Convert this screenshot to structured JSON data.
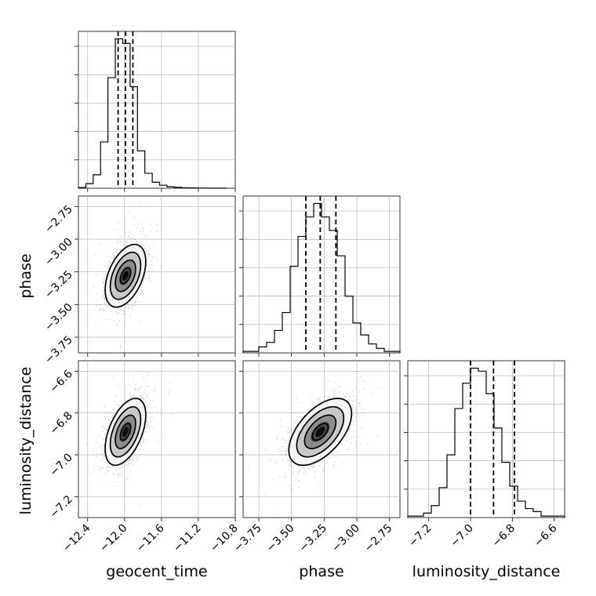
{
  "figure": {
    "params": [
      "geocent_time",
      "phase",
      "luminosity_distance"
    ],
    "axis_labels": [
      "geocent_time",
      "phase",
      "luminosity_distance"
    ]
  },
  "chart_data": [
    {
      "type": "histogram",
      "param": "geocent_time",
      "xlim": [
        -12.5,
        -10.8
      ],
      "xticks": [
        -12.4,
        -12.0,
        -11.6,
        -11.2,
        -10.8
      ],
      "xtick_labels": [
        "−12.4",
        "−12.0",
        "−11.6",
        "−11.2",
        "−10.8"
      ],
      "bins": [
        -12.5,
        -12.42,
        -12.34,
        -12.26,
        -12.18,
        -12.1,
        -12.02,
        -11.94,
        -11.86,
        -11.78,
        -11.7,
        -11.62,
        -11.54,
        -11.46,
        -11.38,
        -11.3,
        -11.22,
        -11.14,
        -11.06,
        -10.98,
        -10.9
      ],
      "counts": [
        0.5,
        3,
        9,
        31,
        74,
        100,
        97,
        68,
        25,
        10,
        4,
        2,
        1,
        0.6,
        0.3,
        0.2,
        0.1,
        0.05,
        0.05,
        0.05
      ],
      "quantiles": [
        -12.07,
        -11.99,
        -11.91
      ],
      "grid": true
    },
    {
      "type": "histogram",
      "param": "phase",
      "xlim": [
        -3.87,
        -2.67
      ],
      "xticks": [
        -3.75,
        -3.5,
        -3.25,
        -3.0,
        -2.75
      ],
      "xtick_labels": [
        "−3.75",
        "−3.50",
        "−3.25",
        "−3.00",
        "−2.75"
      ],
      "bins": [
        -3.87,
        -3.81,
        -3.75,
        -3.69,
        -3.63,
        -3.57,
        -3.51,
        -3.45,
        -3.39,
        -3.33,
        -3.27,
        -3.21,
        -3.15,
        -3.09,
        -3.03,
        -2.97,
        -2.91,
        -2.85,
        -2.79,
        -2.73,
        -2.67
      ],
      "counts": [
        1,
        1,
        4,
        7,
        15,
        27,
        58,
        78,
        91,
        100,
        91,
        82,
        65,
        38,
        20,
        12,
        6,
        3,
        1,
        1
      ],
      "quantiles": [
        -3.39,
        -3.28,
        -3.16
      ],
      "grid": true
    },
    {
      "type": "histogram",
      "param": "luminosity_distance",
      "xlim": [
        -7.3,
        -6.55
      ],
      "xticks": [
        -7.2,
        -7.0,
        -6.8,
        -6.6
      ],
      "xtick_labels": [
        "−7.2",
        "−7.0",
        "−6.8",
        "−6.6"
      ],
      "bins": [
        -7.3,
        -7.2625,
        -7.225,
        -7.1875,
        -7.15,
        -7.1125,
        -7.075,
        -7.0375,
        -7.0,
        -6.9625,
        -6.925,
        -6.8875,
        -6.85,
        -6.8125,
        -6.775,
        -6.7375,
        -6.7,
        -6.6625,
        -6.625,
        -6.5875,
        -6.55
      ],
      "counts": [
        1,
        1,
        3,
        8,
        20,
        42,
        73,
        90,
        100,
        98,
        83,
        60,
        37,
        21,
        11,
        6,
        4,
        1,
        1,
        1
      ],
      "quantiles": [
        -7.0,
        -6.89,
        -6.79
      ],
      "grid": true
    },
    {
      "type": "scatter_density",
      "x_param": "geocent_time",
      "y_param": "phase",
      "xlim": [
        -12.5,
        -10.8
      ],
      "ylim": [
        -3.87,
        -2.67
      ],
      "yticks": [
        -3.75,
        -3.5,
        -3.25,
        -3.0,
        -2.75
      ],
      "ytick_labels": [
        "−3.75",
        "−3.50",
        "−3.25",
        "−3.00",
        "−2.75"
      ],
      "center": [
        -11.99,
        -3.28
      ],
      "std": [
        0.11,
        0.12
      ],
      "correlation": 0.45,
      "contour_levels_sigma": [
        0.5,
        1.0,
        1.5,
        2.0
      ],
      "grid": true
    },
    {
      "type": "scatter_density",
      "x_param": "geocent_time",
      "y_param": "luminosity_distance",
      "xlim": [
        -12.5,
        -10.8
      ],
      "ylim": [
        -7.3,
        -6.55
      ],
      "yticks": [
        -7.2,
        -7.0,
        -6.8,
        -6.6
      ],
      "ytick_labels": [
        "−7.2",
        "−7.0",
        "−6.8",
        "−6.6"
      ],
      "center": [
        -11.99,
        -6.89
      ],
      "std": [
        0.11,
        0.08
      ],
      "correlation": 0.5,
      "contour_levels_sigma": [
        0.5,
        1.0,
        1.5,
        2.0
      ],
      "grid": true
    },
    {
      "type": "scatter_density",
      "x_param": "phase",
      "y_param": "luminosity_distance",
      "xlim": [
        -3.87,
        -2.67
      ],
      "ylim": [
        -7.3,
        -6.55
      ],
      "center": [
        -3.28,
        -6.89
      ],
      "std": [
        0.12,
        0.08
      ],
      "correlation": 0.55,
      "contour_levels_sigma": [
        0.5,
        1.0,
        1.5,
        2.0
      ],
      "grid": true
    }
  ]
}
